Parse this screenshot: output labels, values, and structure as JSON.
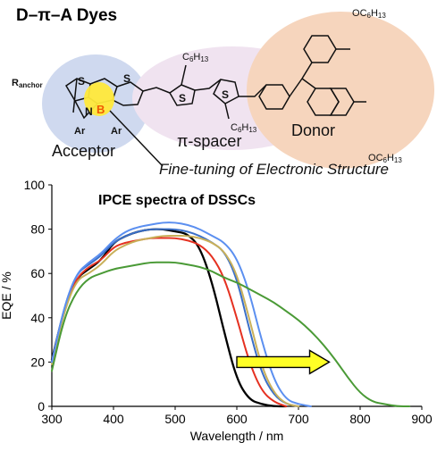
{
  "figure": {
    "title": "D–π–A Dyes",
    "annotation": "Fine-tuning of Electronic Structure",
    "labels": {
      "acceptor": "Acceptor",
      "spacer": "π-spacer",
      "donor": "Donor"
    },
    "structure_text": {
      "r_anchor": "R",
      "r_anchor_sub": "anchor",
      "s": "S",
      "n": "N",
      "b": "B",
      "ar": "Ar",
      "c6h13_base": "C",
      "c6h13_sub1": "6",
      "c6h13_h": "H",
      "c6h13_sub2": "13",
      "oc6h13_o": "O"
    },
    "colors": {
      "acceptor_bg": "#cfd9ef",
      "spacer_bg": "#f0e3f0",
      "donor_bg": "#f6d5bd",
      "b_highlight": "#ffe93a",
      "b_text": "#f05a00",
      "arrow_fill": "#ffff26"
    }
  },
  "chart_data": {
    "type": "line",
    "title": "IPCE spectra of DSSCs",
    "xlabel": "Wavelength / nm",
    "ylabel": "EQE / %",
    "xlim": [
      300,
      900
    ],
    "ylim": [
      0,
      100
    ],
    "xticks": [
      300,
      400,
      500,
      600,
      700,
      800,
      900
    ],
    "yticks": [
      0,
      20,
      40,
      60,
      80,
      100
    ],
    "grid": false,
    "legend": "none",
    "series": [
      {
        "color": "#000000",
        "x": [
          300,
          320,
          340,
          360,
          380,
          400,
          420,
          440,
          460,
          480,
          500,
          520,
          540,
          560,
          580,
          600,
          620,
          640,
          660,
          680
        ],
        "y": [
          21,
          44,
          58,
          62,
          66,
          74,
          77,
          79,
          80,
          80,
          79,
          78,
          72,
          56,
          33,
          12,
          3,
          1,
          0,
          0
        ]
      },
      {
        "color": "#e53121",
        "x": [
          300,
          320,
          340,
          360,
          380,
          400,
          420,
          440,
          460,
          480,
          500,
          520,
          540,
          560,
          580,
          600,
          620,
          640,
          660,
          680
        ],
        "y": [
          20,
          44,
          58,
          63,
          66,
          72,
          74,
          75,
          76,
          76,
          76,
          75,
          73,
          68,
          58,
          40,
          20,
          7,
          2,
          0
        ]
      },
      {
        "color": "#3a6fc8",
        "x": [
          300,
          320,
          340,
          360,
          380,
          400,
          420,
          440,
          460,
          480,
          500,
          520,
          540,
          560,
          580,
          600,
          620,
          640,
          660,
          680,
          700
        ],
        "y": [
          20,
          45,
          60,
          64,
          68,
          74,
          77,
          79,
          80,
          80,
          80,
          79,
          77,
          74,
          70,
          58,
          35,
          15,
          5,
          1,
          0
        ]
      },
      {
        "color": "#c9b05a",
        "x": [
          300,
          320,
          340,
          360,
          380,
          400,
          420,
          440,
          460,
          480,
          500,
          520,
          540,
          560,
          580,
          600,
          620,
          640,
          660,
          680,
          700
        ],
        "y": [
          19,
          43,
          57,
          60,
          64,
          70,
          73,
          75,
          76,
          77,
          77,
          77,
          76,
          74,
          70,
          60,
          40,
          18,
          6,
          1,
          0
        ]
      },
      {
        "color": "#5b8ff0",
        "x": [
          300,
          320,
          340,
          360,
          380,
          400,
          420,
          440,
          460,
          480,
          500,
          520,
          540,
          560,
          580,
          600,
          620,
          640,
          660,
          680,
          700,
          720
        ],
        "y": [
          20,
          45,
          60,
          65,
          69,
          75,
          79,
          81,
          82,
          83,
          83,
          82,
          80,
          77,
          74,
          67,
          52,
          30,
          12,
          3,
          1,
          0
        ]
      },
      {
        "color": "#4a9a36",
        "x": [
          300,
          320,
          340,
          360,
          380,
          400,
          420,
          440,
          460,
          480,
          500,
          520,
          540,
          560,
          580,
          600,
          620,
          640,
          660,
          680,
          700,
          720,
          740,
          760,
          780,
          800,
          820,
          840,
          860,
          880
        ],
        "y": [
          16,
          40,
          52,
          58,
          60,
          62,
          63,
          64,
          65,
          65,
          65,
          64,
          63,
          61,
          58,
          56,
          53,
          50,
          47,
          43,
          39,
          34,
          28,
          21,
          13,
          6,
          2,
          1,
          0,
          0
        ]
      }
    ],
    "arrow": {
      "from": [
        600,
        20
      ],
      "to": [
        750,
        20
      ]
    }
  }
}
